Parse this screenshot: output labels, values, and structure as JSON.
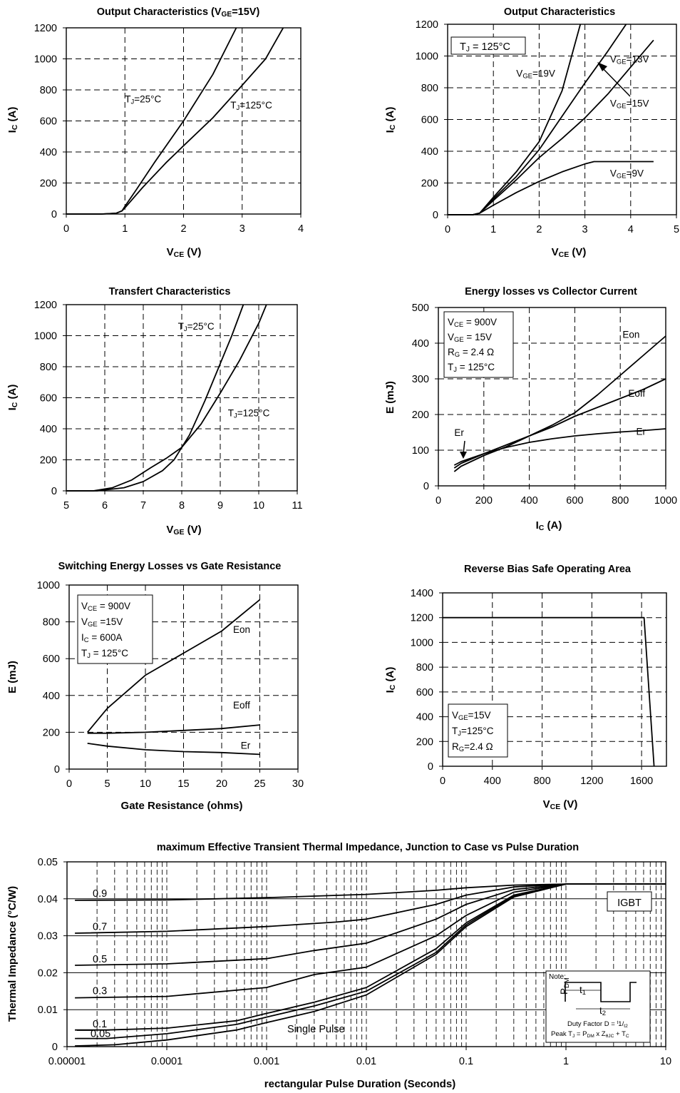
{
  "chart_data": [
    {
      "id": "out25",
      "type": "line",
      "title": "Output Characteristics (V<sub>GE</sub>=15V)",
      "xlabel": "V<sub>CE</sub> (V)",
      "ylabel": "I<sub>C</sub> (A)",
      "xlim": [
        0,
        4
      ],
      "ylim": [
        0,
        1200
      ],
      "xticks": [
        0,
        1,
        2,
        3,
        4
      ],
      "yticks": [
        0,
        200,
        400,
        600,
        800,
        1000,
        1200
      ],
      "grid": "dashed",
      "series": [
        {
          "name": "T<sub>J</sub>=25°C",
          "x": [
            0,
            0.6,
            0.85,
            0.95,
            1.0,
            1.2,
            1.5,
            2.0,
            2.5,
            2.9
          ],
          "y": [
            0,
            0,
            5,
            20,
            50,
            160,
            330,
            600,
            900,
            1200
          ]
        },
        {
          "name": "T<sub>J</sub>=125°C",
          "x": [
            0,
            0.6,
            0.85,
            0.95,
            1.0,
            1.3,
            1.7,
            2.0,
            2.5,
            3.0,
            3.4,
            3.7
          ],
          "y": [
            0,
            0,
            5,
            20,
            40,
            170,
            330,
            440,
            620,
            830,
            1000,
            1200
          ]
        }
      ],
      "annotations": [
        {
          "text": "T<sub>J</sub>=25°C",
          "x": 1.0,
          "y": 720
        },
        {
          "text": "T<sub>J</sub>=125°C",
          "x": 2.8,
          "y": 680
        }
      ]
    },
    {
      "id": "outvge",
      "type": "line",
      "title": "Output Characteristics",
      "xlabel": "V<sub>CE</sub> (V)",
      "ylabel": "I<sub>C</sub> (A)",
      "xlim": [
        0,
        5
      ],
      "ylim": [
        0,
        1200
      ],
      "xticks": [
        0,
        1,
        2,
        3,
        4,
        5
      ],
      "yticks": [
        0,
        200,
        400,
        600,
        800,
        1000,
        1200
      ],
      "grid": "dashed",
      "boxed_label": "T<sub>J</sub> = 125°C",
      "series": [
        {
          "name": "V<sub>GE</sub>=19V",
          "x": [
            0,
            0.55,
            0.7,
            1.0,
            1.5,
            2.0,
            2.5,
            2.9
          ],
          "y": [
            0,
            0,
            10,
            110,
            270,
            460,
            780,
            1200
          ]
        },
        {
          "name": "V<sub>GE</sub>=15V",
          "x": [
            0,
            0.55,
            0.7,
            1.0,
            1.5,
            2.0,
            2.5,
            3.0,
            3.5,
            3.9
          ],
          "y": [
            0,
            0,
            10,
            100,
            240,
            410,
            620,
            830,
            1030,
            1200
          ]
        },
        {
          "name": "V<sub>GE</sub>=13V",
          "x": [
            0,
            0.55,
            0.7,
            1.0,
            1.5,
            2.0,
            2.5,
            3.0,
            3.5,
            4.0,
            4.5
          ],
          "y": [
            0,
            0,
            10,
            90,
            220,
            360,
            480,
            610,
            760,
            930,
            1100
          ]
        },
        {
          "name": "V<sub>GE</sub>=9V",
          "x": [
            0,
            0.55,
            0.7,
            1.0,
            1.5,
            2.0,
            2.5,
            3.0,
            3.2,
            4.5
          ],
          "y": [
            0,
            0,
            10,
            60,
            140,
            210,
            270,
            320,
            335,
            335
          ]
        }
      ],
      "annotations": [
        {
          "text": "V<sub>GE</sub>=19V",
          "x": 1.5,
          "y": 870
        },
        {
          "text": "V<sub>GE</sub>=13V",
          "x": 3.55,
          "y": 960
        },
        {
          "text": "V<sub>GE</sub>=15V",
          "x": 3.55,
          "y": 680
        },
        {
          "text": "V<sub>GE</sub>=9V",
          "x": 3.55,
          "y": 240
        }
      ]
    },
    {
      "id": "transfer",
      "type": "line",
      "title": "Transfert Characteristics",
      "xlabel": "V<sub>GE</sub> (V)",
      "ylabel": "I<sub>C</sub> (A)",
      "xlim": [
        5,
        11
      ],
      "ylim": [
        0,
        1200
      ],
      "xticks": [
        5,
        6,
        7,
        8,
        9,
        10,
        11
      ],
      "yticks": [
        0,
        200,
        400,
        600,
        800,
        1000,
        1200
      ],
      "grid": "dashed",
      "series": [
        {
          "name": "T<sub>J</sub>=25°C",
          "x": [
            5,
            5.8,
            6.5,
            7.0,
            7.5,
            7.8,
            8.2,
            8.6,
            9.0,
            9.3,
            9.6
          ],
          "y": [
            0,
            0,
            20,
            60,
            130,
            200,
            360,
            580,
            820,
            1000,
            1200
          ]
        },
        {
          "name": "T<sub>J</sub>=125°C",
          "x": [
            5,
            5.7,
            6.2,
            6.7,
            7.2,
            7.6,
            8.0,
            8.5,
            9.0,
            9.5,
            10.0,
            10.2
          ],
          "y": [
            0,
            0,
            20,
            70,
            150,
            210,
            280,
            430,
            630,
            840,
            1080,
            1200
          ]
        }
      ],
      "annotations": [
        {
          "text": "T<sub>J</sub>=25°C",
          "x": 7.9,
          "y": 1040
        },
        {
          "text": "T<sub>J</sub>=125°C",
          "x": 9.2,
          "y": 480
        }
      ]
    },
    {
      "id": "eic",
      "type": "line",
      "title": "Energy losses vs Collector Current",
      "xlabel": "I<sub>C</sub> (A)",
      "ylabel": "E (mJ)",
      "xlim": [
        0,
        1000
      ],
      "ylim": [
        0,
        500
      ],
      "xticks": [
        0,
        200,
        400,
        600,
        800,
        1000
      ],
      "yticks": [
        0,
        100,
        200,
        300,
        400,
        500
      ],
      "grid": "dashed",
      "conditions": [
        "V<sub>CE</sub> = 900V",
        "V<sub>GE</sub> = 15V",
        "R<sub>G</sub> = 2.4 Ω",
        "T<sub>J</sub> = 125°C"
      ],
      "series": [
        {
          "name": "Eon",
          "x": [
            70,
            100,
            200,
            300,
            400,
            500,
            600,
            700,
            800,
            900,
            1000
          ],
          "y": [
            40,
            55,
            85,
            110,
            140,
            170,
            205,
            255,
            310,
            365,
            420
          ]
        },
        {
          "name": "Eoff",
          "x": [
            70,
            100,
            200,
            300,
            400,
            500,
            600,
            700,
            800,
            900,
            1000
          ],
          "y": [
            50,
            63,
            90,
            115,
            140,
            165,
            195,
            220,
            245,
            270,
            300
          ]
        },
        {
          "name": "Er",
          "x": [
            70,
            100,
            200,
            300,
            400,
            500,
            600,
            700,
            800,
            900,
            1000
          ],
          "y": [
            58,
            68,
            90,
            108,
            122,
            132,
            140,
            146,
            151,
            155,
            160
          ]
        }
      ],
      "annotations": [
        {
          "text": "Eon",
          "x": 810,
          "y": 415
        },
        {
          "text": "Eoff",
          "x": 835,
          "y": 250
        },
        {
          "text": "Er",
          "x": 870,
          "y": 143
        },
        {
          "text": "Er",
          "x": 70,
          "y": 140
        }
      ]
    },
    {
      "id": "erg",
      "type": "line",
      "title": "Switching Energy Losses vs Gate Resistance",
      "xlabel": "Gate Resistance (ohms)",
      "ylabel": "E (mJ)",
      "xlim": [
        0,
        30
      ],
      "ylim": [
        0,
        1000
      ],
      "xticks": [
        0,
        5,
        10,
        15,
        20,
        25,
        30
      ],
      "yticks": [
        0,
        200,
        400,
        600,
        800,
        1000
      ],
      "grid": "dashed",
      "conditions": [
        "V<sub>CE</sub> = 900V",
        "V<sub>GE</sub> =15V",
        "I<sub>C</sub> = 600A",
        "T<sub>J</sub> = 125°C"
      ],
      "series": [
        {
          "name": "Eon",
          "x": [
            2.4,
            5,
            10,
            15,
            20,
            25
          ],
          "y": [
            200,
            330,
            510,
            630,
            750,
            920
          ]
        },
        {
          "name": "Eoff",
          "x": [
            2.4,
            5,
            10,
            15,
            20,
            25
          ],
          "y": [
            195,
            195,
            200,
            210,
            220,
            240
          ]
        },
        {
          "name": "Er",
          "x": [
            2.4,
            5,
            10,
            15,
            20,
            25
          ],
          "y": [
            140,
            125,
            105,
            95,
            90,
            80
          ]
        }
      ],
      "annotations": [
        {
          "text": "Eon",
          "x": 21.5,
          "y": 740
        },
        {
          "text": "Eoff",
          "x": 21.5,
          "y": 330
        },
        {
          "text": "Er",
          "x": 22.5,
          "y": 110
        }
      ]
    },
    {
      "id": "rbsoa",
      "type": "line",
      "title": "Reverse Bias Safe Operating Area",
      "xlabel": "V<sub>CE</sub> (V)",
      "ylabel": "I<sub>C</sub> (A)",
      "xlim": [
        0,
        1800
      ],
      "ylim": [
        0,
        1400
      ],
      "xticks": [
        0,
        400,
        800,
        1200,
        1600
      ],
      "yticks": [
        0,
        200,
        400,
        600,
        800,
        1000,
        1200,
        1400
      ],
      "grid": "dashed",
      "conditions": [
        "V<sub>GE</sub>=15V",
        "T<sub>J</sub>=125°C",
        "R<sub>G</sub>=2.4 Ω"
      ],
      "series": [
        {
          "name": "",
          "x": [
            0,
            1620,
            1700
          ],
          "y": [
            1200,
            1200,
            0
          ]
        }
      ]
    },
    {
      "id": "zth",
      "type": "line",
      "title": "maximum Effective Transient Thermal Impedance, Junction to Case vs Pulse Duration",
      "xlabel": "rectangular Pulse Duration (Seconds)",
      "ylabel": "Thermal Impedance (°C/W)",
      "xscale": "log",
      "xlim": [
        1e-05,
        10
      ],
      "ylim": [
        0,
        0.05
      ],
      "xticks": [
        1e-05,
        0.0001,
        0.001,
        0.01,
        0.1,
        1,
        10
      ],
      "xticklabels": [
        "0.00001",
        "0.0001",
        "0.001",
        "0.01",
        "0.1",
        "1",
        "10"
      ],
      "yticks": [
        0,
        0.01,
        0.02,
        0.03,
        0.04,
        0.05
      ],
      "yticklabels": [
        "0",
        "0.01",
        "0.02",
        "0.03",
        "0.04",
        "0.05"
      ],
      "grid": "log",
      "boxed_label": "IGBT",
      "note": {
        "title": "Note:",
        "pdm": "P<sub>DM</sub>",
        "t1": "t<sub>1</sub>",
        "t2": "t<sub>2</sub>",
        "line1": "Duty Factor  D = <sup>t</sup>1/<sub>t2</sub>",
        "line2": "Peak T<sub>J</sub> = P<sub>DM</sub> x Z<sub>θJC</sub> + T<sub>C</sub>"
      },
      "series": [
        {
          "name": "0.9",
          "x": [
            1.2e-05,
            0.0001,
            0.001,
            0.01,
            0.05,
            0.1,
            0.3,
            1,
            1.5,
            10
          ],
          "y": [
            0.0396,
            0.0397,
            0.0403,
            0.0412,
            0.0423,
            0.043,
            0.0437,
            0.044,
            0.044,
            0.044
          ]
        },
        {
          "name": "0.7",
          "x": [
            1.2e-05,
            0.0001,
            0.001,
            0.005,
            0.01,
            0.05,
            0.1,
            0.3,
            1,
            1.5,
            10
          ],
          "y": [
            0.0307,
            0.0312,
            0.0325,
            0.0337,
            0.0345,
            0.0385,
            0.041,
            0.0432,
            0.044,
            0.044,
            0.044
          ]
        },
        {
          "name": "0.5",
          "x": [
            1.2e-05,
            0.0001,
            0.001,
            0.003,
            0.01,
            0.05,
            0.1,
            0.3,
            1,
            1.5,
            10
          ],
          "y": [
            0.022,
            0.0224,
            0.0238,
            0.026,
            0.028,
            0.0345,
            0.0385,
            0.0425,
            0.044,
            0.044,
            0.044
          ]
        },
        {
          "name": "0.3",
          "x": [
            1.2e-05,
            0.0001,
            0.001,
            0.003,
            0.01,
            0.05,
            0.1,
            0.3,
            1,
            1.5,
            10
          ],
          "y": [
            0.0132,
            0.0136,
            0.016,
            0.0195,
            0.0215,
            0.03,
            0.0355,
            0.0418,
            0.044,
            0.044,
            0.044
          ]
        },
        {
          "name": "0.1",
          "x": [
            1.2e-05,
            2.5e-05,
            0.0001,
            0.0005,
            0.001,
            0.003,
            0.01,
            0.05,
            0.1,
            0.3,
            1,
            1.5,
            10
          ],
          "y": [
            0.0045,
            0.0045,
            0.005,
            0.007,
            0.009,
            0.012,
            0.016,
            0.0265,
            0.0335,
            0.041,
            0.044,
            0.044,
            0.044
          ]
        },
        {
          "name": "0.05",
          "x": [
            1.2e-05,
            2.5e-05,
            0.0001,
            0.0005,
            0.001,
            0.003,
            0.01,
            0.05,
            0.1,
            0.3,
            1,
            1.5,
            10
          ],
          "y": [
            0.0022,
            0.0022,
            0.0035,
            0.006,
            0.008,
            0.011,
            0.015,
            0.0255,
            0.033,
            0.0408,
            0.044,
            0.044,
            0.044
          ]
        },
        {
          "name": "Single Pulse",
          "x": [
            1.2e-05,
            3e-05,
            0.0001,
            0.0005,
            0.001,
            0.003,
            0.01,
            0.05,
            0.1,
            0.3,
            1,
            1.5,
            10
          ],
          "y": [
            0.0002,
            0.0005,
            0.0018,
            0.0045,
            0.0065,
            0.0095,
            0.014,
            0.025,
            0.0325,
            0.0405,
            0.044,
            0.044,
            0.044
          ]
        }
      ]
    }
  ]
}
